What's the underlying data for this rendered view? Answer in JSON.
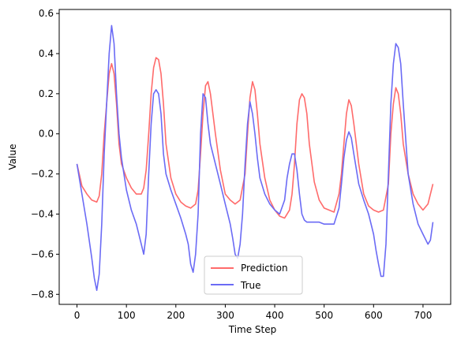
{
  "chart_data": {
    "type": "line",
    "title": "",
    "xlabel": "Time Step",
    "ylabel": "Value",
    "xlim": [
      -36,
      756
    ],
    "ylim": [
      -0.85,
      0.62
    ],
    "xticks": [
      0,
      100,
      200,
      300,
      400,
      500,
      600,
      700
    ],
    "yticks": [
      -0.8,
      -0.6,
      -0.4,
      -0.2,
      0.0,
      0.2,
      0.4,
      0.6
    ],
    "ytick_labels": [
      "−0.8",
      "−0.6",
      "−0.4",
      "−0.2",
      "0.0",
      "0.2",
      "0.4",
      "0.6"
    ],
    "grid": false,
    "legend": "bottom-center",
    "series": [
      {
        "name": "Prediction",
        "color": "#ff6b6b",
        "x": [
          0,
          10,
          20,
          30,
          40,
          45,
          50,
          55,
          60,
          65,
          70,
          75,
          80,
          85,
          90,
          100,
          110,
          120,
          130,
          135,
          140,
          145,
          150,
          155,
          160,
          165,
          170,
          175,
          180,
          190,
          200,
          210,
          220,
          230,
          240,
          245,
          250,
          255,
          260,
          265,
          270,
          280,
          290,
          300,
          310,
          320,
          330,
          340,
          345,
          350,
          355,
          360,
          365,
          370,
          380,
          390,
          400,
          410,
          420,
          430,
          435,
          440,
          445,
          450,
          455,
          460,
          465,
          470,
          480,
          490,
          500,
          510,
          520,
          530,
          535,
          540,
          545,
          550,
          555,
          560,
          570,
          580,
          590,
          600,
          610,
          620,
          630,
          635,
          640,
          645,
          650,
          655,
          660,
          670,
          680,
          690,
          700,
          710,
          720
        ],
        "y": [
          -0.15,
          -0.26,
          -0.3,
          -0.33,
          -0.34,
          -0.31,
          -0.2,
          0.0,
          0.15,
          0.3,
          0.35,
          0.3,
          0.15,
          -0.05,
          -0.15,
          -0.22,
          -0.27,
          -0.3,
          -0.3,
          -0.27,
          -0.18,
          0.0,
          0.2,
          0.33,
          0.38,
          0.37,
          0.3,
          0.15,
          -0.05,
          -0.22,
          -0.3,
          -0.34,
          -0.36,
          -0.37,
          -0.35,
          -0.28,
          -0.1,
          0.1,
          0.24,
          0.26,
          0.2,
          0.0,
          -0.18,
          -0.3,
          -0.33,
          -0.35,
          -0.33,
          -0.2,
          0.0,
          0.18,
          0.26,
          0.22,
          0.1,
          -0.05,
          -0.22,
          -0.33,
          -0.38,
          -0.41,
          -0.42,
          -0.38,
          -0.3,
          -0.15,
          0.05,
          0.17,
          0.2,
          0.18,
          0.1,
          -0.05,
          -0.24,
          -0.33,
          -0.37,
          -0.38,
          -0.39,
          -0.3,
          -0.2,
          -0.05,
          0.1,
          0.17,
          0.14,
          0.05,
          -0.15,
          -0.3,
          -0.36,
          -0.38,
          -0.39,
          -0.38,
          -0.25,
          0.0,
          0.15,
          0.23,
          0.2,
          0.1,
          -0.05,
          -0.2,
          -0.3,
          -0.35,
          -0.38,
          -0.35,
          -0.25
        ]
      },
      {
        "name": "True",
        "color": "#6b6bf5",
        "x": [
          0,
          10,
          20,
          30,
          35,
          40,
          45,
          50,
          55,
          60,
          65,
          70,
          75,
          80,
          85,
          90,
          95,
          100,
          110,
          120,
          130,
          135,
          140,
          145,
          150,
          155,
          160,
          165,
          170,
          175,
          180,
          190,
          200,
          210,
          220,
          225,
          230,
          235,
          240,
          245,
          250,
          255,
          260,
          265,
          270,
          280,
          290,
          300,
          310,
          315,
          320,
          325,
          330,
          335,
          340,
          345,
          350,
          355,
          360,
          365,
          370,
          380,
          390,
          400,
          410,
          420,
          425,
          430,
          435,
          440,
          445,
          450,
          455,
          460,
          465,
          470,
          480,
          490,
          500,
          510,
          520,
          530,
          535,
          540,
          545,
          550,
          555,
          560,
          570,
          580,
          590,
          600,
          605,
          610,
          615,
          620,
          625,
          630,
          635,
          640,
          645,
          650,
          655,
          660,
          670,
          680,
          690,
          700,
          710,
          715,
          720
        ],
        "y": [
          -0.15,
          -0.3,
          -0.45,
          -0.62,
          -0.72,
          -0.78,
          -0.7,
          -0.45,
          -0.1,
          0.15,
          0.4,
          0.54,
          0.45,
          0.2,
          0.0,
          -0.12,
          -0.2,
          -0.28,
          -0.38,
          -0.45,
          -0.55,
          -0.6,
          -0.5,
          -0.2,
          0.05,
          0.2,
          0.22,
          0.2,
          0.1,
          -0.1,
          -0.2,
          -0.28,
          -0.35,
          -0.42,
          -0.5,
          -0.55,
          -0.65,
          -0.69,
          -0.6,
          -0.4,
          0.0,
          0.2,
          0.18,
          0.05,
          -0.05,
          -0.15,
          -0.25,
          -0.35,
          -0.45,
          -0.52,
          -0.6,
          -0.62,
          -0.55,
          -0.4,
          -0.15,
          0.05,
          0.16,
          0.1,
          0.0,
          -0.12,
          -0.22,
          -0.3,
          -0.35,
          -0.38,
          -0.4,
          -0.33,
          -0.22,
          -0.15,
          -0.1,
          -0.1,
          -0.18,
          -0.3,
          -0.4,
          -0.43,
          -0.44,
          -0.44,
          -0.44,
          -0.44,
          -0.45,
          -0.45,
          -0.45,
          -0.37,
          -0.25,
          -0.12,
          -0.03,
          0.01,
          -0.02,
          -0.1,
          -0.25,
          -0.33,
          -0.4,
          -0.5,
          -0.58,
          -0.65,
          -0.71,
          -0.71,
          -0.55,
          -0.2,
          0.15,
          0.35,
          0.45,
          0.43,
          0.35,
          0.15,
          -0.2,
          -0.35,
          -0.45,
          -0.5,
          -0.55,
          -0.53,
          -0.44
        ]
      }
    ]
  }
}
